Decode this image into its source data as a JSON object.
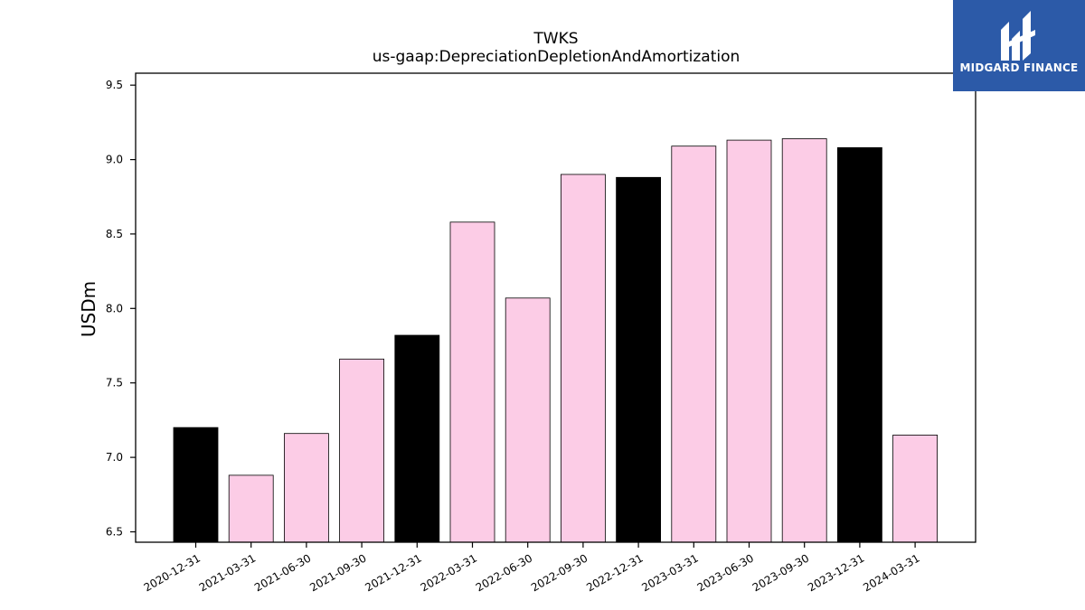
{
  "brand": {
    "name": "MIDGARD FINANCE",
    "background_color": "#2c5aa8",
    "text_color": "#ffffff",
    "icon": "midgard-logo-icon"
  },
  "chart_data": {
    "type": "bar",
    "title": "TWKS",
    "subtitle": "us-gaap:DepreciationDepletionAndAmortization",
    "xlabel": "",
    "ylabel": "USDm",
    "ylim": [
      6.43,
      9.58
    ],
    "yticks": [
      6.5,
      7.0,
      7.5,
      8.0,
      8.5,
      9.0,
      9.5
    ],
    "grid": false,
    "legend": "none",
    "categories": [
      "2020-12-31",
      "2021-03-31",
      "2021-06-30",
      "2021-09-30",
      "2021-12-31",
      "2022-03-31",
      "2022-06-30",
      "2022-09-30",
      "2022-12-31",
      "2023-03-31",
      "2023-06-30",
      "2023-09-30",
      "2023-12-31",
      "2024-03-31"
    ],
    "values": [
      7.2,
      6.88,
      7.16,
      7.66,
      7.82,
      8.58,
      8.07,
      8.9,
      8.88,
      9.09,
      9.13,
      9.14,
      9.08,
      7.15
    ],
    "bar_colors": [
      "#000000",
      "#fccce6",
      "#fccce6",
      "#fccce6",
      "#000000",
      "#fccce6",
      "#fccce6",
      "#fccce6",
      "#000000",
      "#fccce6",
      "#fccce6",
      "#fccce6",
      "#000000",
      "#fccce6"
    ],
    "bar_edge_color": "#000000"
  }
}
